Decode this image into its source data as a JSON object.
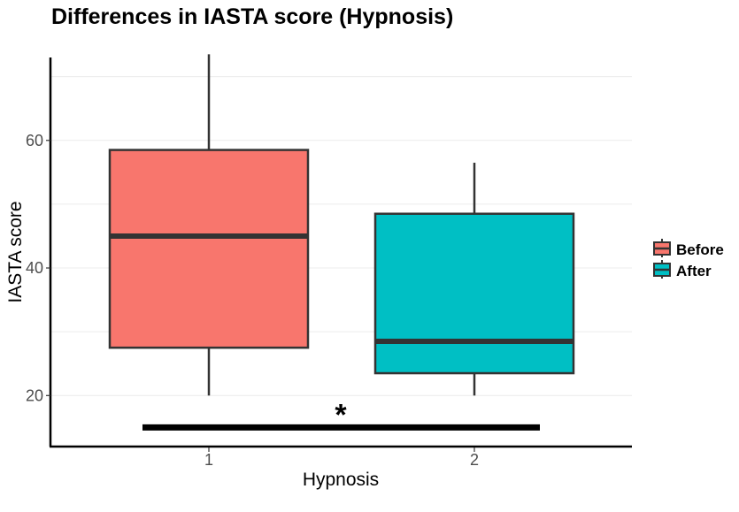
{
  "chart_data": {
    "type": "boxplot",
    "title": "Differences in IASTA score (Hypnosis)",
    "xlabel": "Hypnosis",
    "ylabel": "IASTA score",
    "categories": [
      "1",
      "2"
    ],
    "ylim": [
      12,
      73
    ],
    "yticks": [
      20,
      40,
      60
    ],
    "grid": true,
    "legend_position": "right",
    "series": [
      {
        "name": "Before",
        "color": "#F8766D",
        "category": "1",
        "min": 20,
        "q1": 27.5,
        "median": 45,
        "q3": 58.5,
        "max": 73.5
      },
      {
        "name": "After",
        "color": "#00BFC4",
        "category": "2",
        "min": 20,
        "q1": 23.5,
        "median": 28.5,
        "q3": 48.5,
        "max": 56.5
      }
    ],
    "annotations": [
      {
        "text": "*",
        "type": "significance",
        "y": 15
      }
    ]
  }
}
